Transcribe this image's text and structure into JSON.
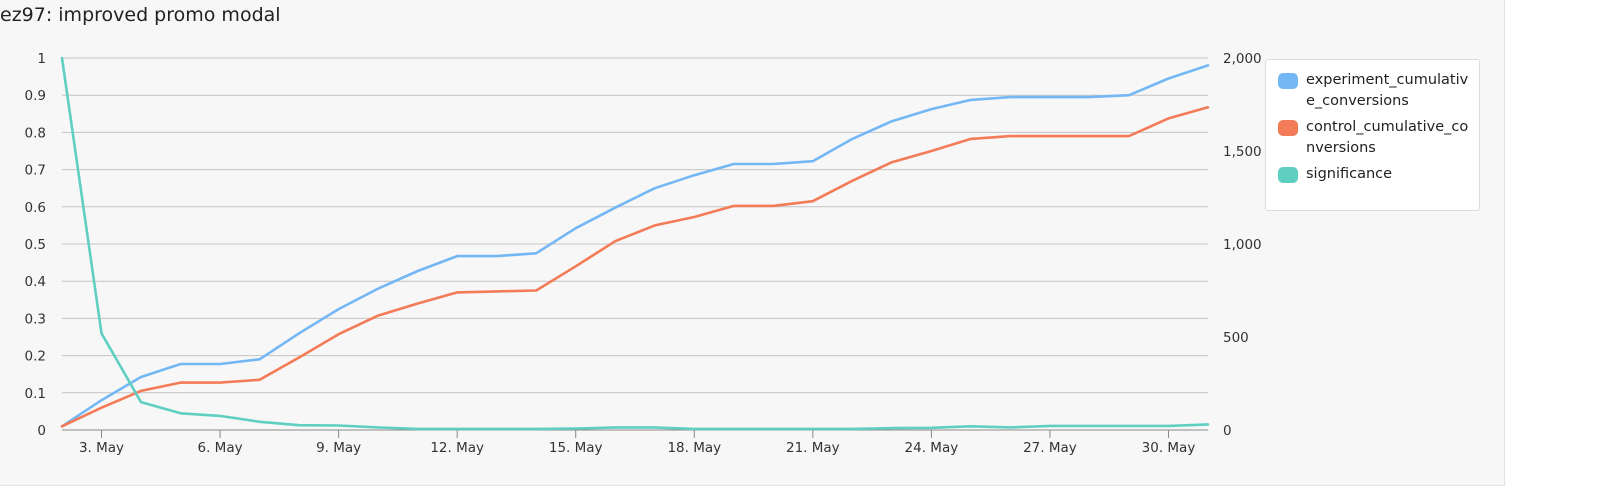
{
  "title": "ez97: improved promo modal",
  "colors": {
    "experiment": "#74b7f5",
    "control": "#f37b57",
    "significance": "#5fcfc2",
    "grid": "#c4c4c4",
    "axis": "#888888"
  },
  "chart_data": {
    "type": "line",
    "x": [
      "2. May",
      "3. May",
      "4. May",
      "5. May",
      "6. May",
      "7. May",
      "8. May",
      "9. May",
      "10. May",
      "11. May",
      "12. May",
      "13. May",
      "14. May",
      "15. May",
      "16. May",
      "17. May",
      "18. May",
      "19. May",
      "20. May",
      "21. May",
      "22. May",
      "23. May",
      "24. May",
      "25. May",
      "26. May",
      "27. May",
      "28. May",
      "29. May",
      "30. May",
      "31. May"
    ],
    "x_tick_labels": [
      "3. May",
      "6. May",
      "9. May",
      "12. May",
      "15. May",
      "18. May",
      "21. May",
      "24. May",
      "27. May",
      "30. May"
    ],
    "left_axis": {
      "ylim": [
        0,
        1
      ],
      "tick_labels": [
        "0",
        "0.1",
        "0.2",
        "0.3",
        "0.4",
        "0.5",
        "0.6",
        "0.7",
        "0.8",
        "0.9",
        "1"
      ]
    },
    "right_axis": {
      "ylim": [
        0,
        2000
      ],
      "tick_labels": [
        "0",
        "500",
        "1,000",
        "1,500",
        "2,000"
      ]
    },
    "series": [
      {
        "name": "experiment_cumulative_conversions",
        "axis": "right",
        "values": [
          20,
          160,
          285,
          355,
          355,
          380,
          520,
          650,
          760,
          855,
          935,
          935,
          950,
          1085,
          1195,
          1300,
          1370,
          1430,
          1430,
          1445,
          1565,
          1660,
          1725,
          1775,
          1790,
          1790,
          1790,
          1800,
          1890,
          1960
        ]
      },
      {
        "name": "control_cumulative_conversions",
        "axis": "right",
        "values": [
          20,
          120,
          210,
          255,
          255,
          270,
          390,
          515,
          615,
          680,
          740,
          745,
          750,
          880,
          1015,
          1100,
          1145,
          1205,
          1205,
          1230,
          1340,
          1440,
          1500,
          1565,
          1580,
          1580,
          1580,
          1580,
          1675,
          1735
        ]
      },
      {
        "name": "significance",
        "axis": "left",
        "values": [
          1.0,
          0.26,
          0.075,
          0.045,
          0.038,
          0.022,
          0.013,
          0.012,
          0.007,
          0.003,
          0.003,
          0.003,
          0.003,
          0.004,
          0.007,
          0.007,
          0.003,
          0.003,
          0.003,
          0.003,
          0.003,
          0.005,
          0.006,
          0.01,
          0.007,
          0.011,
          0.011,
          0.011,
          0.011,
          0.015
        ]
      }
    ],
    "legend": {
      "position": "right",
      "entries": [
        "experiment_cumulative_conversions",
        "control_cumulative_conversions",
        "significance"
      ]
    },
    "grid": true
  }
}
